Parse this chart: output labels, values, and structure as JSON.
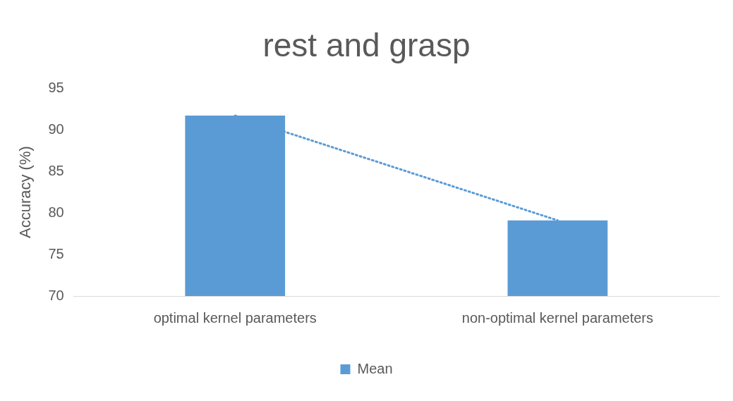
{
  "chart_data": {
    "type": "bar",
    "title": "rest and grasp",
    "ylabel": "Accuracy (%)",
    "categories": [
      "optimal kernel parameters",
      "non-optimal kernel parameters"
    ],
    "series": [
      {
        "name": "Mean",
        "color": "#5b9bd5",
        "values": [
          91.7,
          79.1
        ]
      },
      {
        "type": "line",
        "color": "#5b9bd5",
        "values": [
          91.7,
          79.1
        ],
        "line_style": "dotted",
        "marker": "none"
      }
    ],
    "ylim": [
      70,
      95
    ],
    "yticks": [
      70,
      75,
      80,
      85,
      90,
      95
    ],
    "grid": false,
    "legend": "bottom"
  }
}
